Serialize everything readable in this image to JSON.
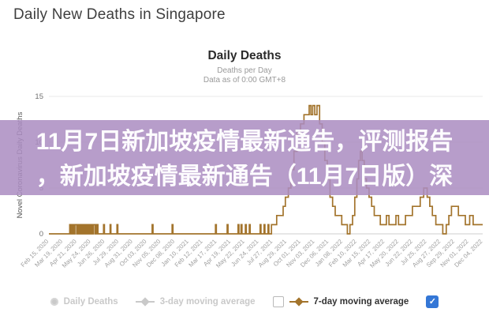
{
  "page": {
    "title": "Daily New Deaths in Singapore"
  },
  "chart": {
    "title": "Daily Deaths",
    "subtitle1": "Deaths per Day",
    "subtitle2": "Data as of 0:00 GMT+8"
  },
  "overlay": {
    "line1": "11月7日新加坡疫情最新通告，评测报告",
    "line2": "，新加坡疫情最新通告（11月7日版）深",
    "background_color": "#ab8dc1",
    "text_color": "#ffffff"
  },
  "legend": {
    "items": [
      {
        "label": "Daily Deaths",
        "icon": "circle-marker-icon",
        "color": "#c9c9c9",
        "state": "inactive"
      },
      {
        "label": "3-day moving average",
        "icon": "diamond-line-icon",
        "color": "#c9c9c9",
        "state": "inactive"
      },
      {
        "label": "7-day moving average",
        "icon": "diamond-line-icon",
        "color": "#a3742c",
        "state": "active",
        "checkbox": "unchecked"
      }
    ],
    "checked_checkbox": {
      "state": "checked",
      "color": "#3477d6",
      "glyph": "✓"
    }
  },
  "chart_data": {
    "type": "line",
    "title": "Daily Deaths",
    "subtitle": "Deaths per Day — Data as of 0:00 GMT+8",
    "xlabel": "",
    "ylabel": "Novel Coronavirus Daily Deaths",
    "ylim": [
      0,
      15
    ],
    "y_ticks": [
      0,
      5,
      10,
      15
    ],
    "grid": true,
    "legend_position": "bottom",
    "x_axis_note": "x given as fraction of axis from Feb 15, 2020 (0.0) to Dec 04, 2022 (1.0)",
    "x_tick_labels": [
      "Feb 15, 2020",
      "Mar 19, 2020",
      "Apr 21, 2020",
      "May 24, 2020",
      "Jun 26, 2020",
      "Jul 29, 2020",
      "Aug 31, 2020",
      "Oct 03, 2020",
      "Nov 05, 2020",
      "Dec 08, 2020",
      "Jan 10, 2021",
      "Feb 12, 2021",
      "Mar 17, 2021",
      "Apr 19, 2021",
      "May 22, 2021",
      "Jun 24, 2021",
      "Jul 27, 2021",
      "Aug 29, 2021",
      "Oct 01, 2021",
      "Nov 03, 2021",
      "Dec 06, 2021",
      "Jan 08, 2022",
      "Feb 10, 2022",
      "Mar 15, 2022",
      "Apr 17, 2022",
      "May 20, 2022",
      "Jun 22, 2022",
      "Jul 25, 2022",
      "Aug 27, 2022",
      "Sep 29, 2022",
      "Nov 01, 2022",
      "Dec 04, 2022"
    ],
    "series": [
      {
        "name": "Daily Deaths",
        "visible": false,
        "color": "#c9c9c9"
      },
      {
        "name": "3-day moving average",
        "visible": false,
        "color": "#c9c9c9"
      },
      {
        "name": "7-day moving average",
        "visible": true,
        "color": "#a3742c",
        "points": [
          [
            0.0,
            0
          ],
          [
            0.045,
            0
          ],
          [
            0.048,
            1
          ],
          [
            0.051,
            0
          ],
          [
            0.054,
            1
          ],
          [
            0.057,
            0
          ],
          [
            0.06,
            1
          ],
          [
            0.064,
            0
          ],
          [
            0.067,
            1
          ],
          [
            0.07,
            0
          ],
          [
            0.073,
            1
          ],
          [
            0.076,
            0
          ],
          [
            0.079,
            1
          ],
          [
            0.082,
            0
          ],
          [
            0.085,
            1
          ],
          [
            0.088,
            0
          ],
          [
            0.091,
            1
          ],
          [
            0.094,
            0
          ],
          [
            0.097,
            1
          ],
          [
            0.1,
            0
          ],
          [
            0.103,
            1
          ],
          [
            0.107,
            0
          ],
          [
            0.11,
            1
          ],
          [
            0.113,
            0
          ],
          [
            0.124,
            0
          ],
          [
            0.126,
            1
          ],
          [
            0.128,
            0
          ],
          [
            0.139,
            0
          ],
          [
            0.141,
            1
          ],
          [
            0.143,
            0
          ],
          [
            0.155,
            0
          ],
          [
            0.157,
            1
          ],
          [
            0.159,
            0
          ],
          [
            0.236,
            0
          ],
          [
            0.238,
            1
          ],
          [
            0.24,
            0
          ],
          [
            0.282,
            0
          ],
          [
            0.284,
            1
          ],
          [
            0.286,
            0
          ],
          [
            0.382,
            0
          ],
          [
            0.384,
            1
          ],
          [
            0.386,
            0
          ],
          [
            0.409,
            0
          ],
          [
            0.411,
            1
          ],
          [
            0.413,
            0
          ],
          [
            0.434,
            0
          ],
          [
            0.436,
            1
          ],
          [
            0.438,
            0
          ],
          [
            0.443,
            1
          ],
          [
            0.445,
            0
          ],
          [
            0.453,
            1
          ],
          [
            0.455,
            0
          ],
          [
            0.462,
            1
          ],
          [
            0.464,
            0
          ],
          [
            0.485,
            0
          ],
          [
            0.487,
            1
          ],
          [
            0.489,
            0
          ],
          [
            0.496,
            1
          ],
          [
            0.498,
            0
          ],
          [
            0.505,
            1
          ],
          [
            0.507,
            0
          ],
          [
            0.513,
            1
          ],
          [
            0.52,
            1
          ],
          [
            0.525,
            2
          ],
          [
            0.535,
            2
          ],
          [
            0.54,
            3
          ],
          [
            0.545,
            4
          ],
          [
            0.552,
            5
          ],
          [
            0.558,
            7
          ],
          [
            0.565,
            9
          ],
          [
            0.572,
            11
          ],
          [
            0.58,
            12
          ],
          [
            0.588,
            13
          ],
          [
            0.596,
            13
          ],
          [
            0.6,
            14
          ],
          [
            0.604,
            13
          ],
          [
            0.608,
            14
          ],
          [
            0.613,
            13
          ],
          [
            0.618,
            14
          ],
          [
            0.624,
            12
          ],
          [
            0.63,
            10
          ],
          [
            0.636,
            8
          ],
          [
            0.642,
            6
          ],
          [
            0.648,
            4
          ],
          [
            0.654,
            3
          ],
          [
            0.66,
            2
          ],
          [
            0.668,
            2
          ],
          [
            0.675,
            1
          ],
          [
            0.682,
            1
          ],
          [
            0.688,
            0
          ],
          [
            0.694,
            1
          ],
          [
            0.7,
            2
          ],
          [
            0.705,
            4
          ],
          [
            0.71,
            6
          ],
          [
            0.714,
            8
          ],
          [
            0.718,
            9
          ],
          [
            0.722,
            8
          ],
          [
            0.727,
            6
          ],
          [
            0.732,
            5
          ],
          [
            0.738,
            4
          ],
          [
            0.744,
            3
          ],
          [
            0.75,
            2
          ],
          [
            0.758,
            2
          ],
          [
            0.764,
            1
          ],
          [
            0.772,
            1
          ],
          [
            0.778,
            2
          ],
          [
            0.784,
            1
          ],
          [
            0.792,
            1
          ],
          [
            0.8,
            2
          ],
          [
            0.806,
            1
          ],
          [
            0.814,
            1
          ],
          [
            0.822,
            2
          ],
          [
            0.83,
            2
          ],
          [
            0.838,
            3
          ],
          [
            0.848,
            3
          ],
          [
            0.856,
            4
          ],
          [
            0.864,
            5
          ],
          [
            0.872,
            4
          ],
          [
            0.878,
            3
          ],
          [
            0.884,
            2
          ],
          [
            0.892,
            1
          ],
          [
            0.9,
            1
          ],
          [
            0.908,
            0
          ],
          [
            0.916,
            1
          ],
          [
            0.922,
            2
          ],
          [
            0.928,
            3
          ],
          [
            0.938,
            3
          ],
          [
            0.944,
            2
          ],
          [
            0.954,
            2
          ],
          [
            0.96,
            1
          ],
          [
            0.97,
            2
          ],
          [
            0.978,
            1
          ],
          [
            0.988,
            1
          ],
          [
            1.0,
            1
          ]
        ]
      }
    ]
  }
}
